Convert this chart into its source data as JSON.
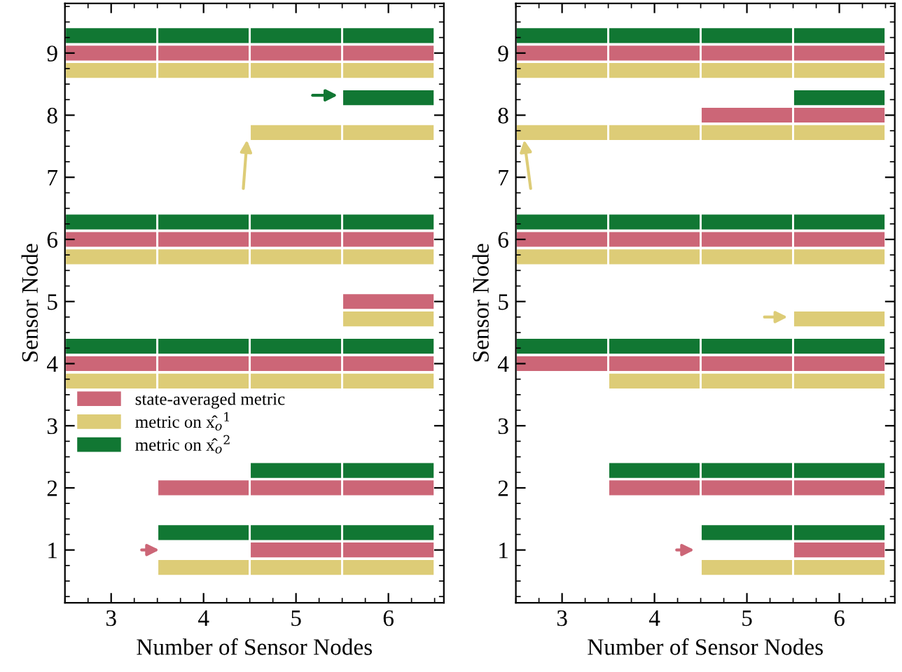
{
  "chart_data": [
    {
      "type": "bar",
      "orientation": "horizontal",
      "xlabel": "Number of Sensor Nodes",
      "ylabel": "Sensor Node",
      "xlim": [
        2.5,
        6.6
      ],
      "xticks": [
        3,
        4,
        5,
        6
      ],
      "ylim": [
        0.15,
        9.8
      ],
      "yticks": [
        1,
        2,
        3,
        4,
        5,
        6,
        7,
        8,
        9
      ],
      "legend": "center left",
      "grid": false,
      "series": [
        {
          "name": "state-averaged metric",
          "color": "#cc6677",
          "x": [
            4,
            6,
            9
          ],
          "base": [
            2.5,
            2.5,
            2.5
          ],
          "values": [
            1,
            1,
            1
          ]
        },
        {
          "name": "metric on x̂$_{o}$$^{1}$",
          "color": "#ddcc77",
          "x": [
            4,
            6,
            9
          ],
          "base": [
            2.5,
            2.5,
            2.5
          ],
          "values": [
            1,
            1,
            1
          ]
        },
        {
          "name": "metric on x̂$_{o}$$^{2}$",
          "color": "#117733",
          "x": [
            4,
            6,
            9
          ],
          "base": [
            2.5,
            2.5,
            2.5
          ],
          "values": [
            1,
            1,
            1
          ]
        },
        {
          "color": "#cc6677",
          "x": [
            2,
            4,
            6,
            9
          ],
          "base": [
            3.5,
            3.5,
            3.5,
            3.5
          ],
          "values": [
            1,
            1,
            1,
            1
          ]
        },
        {
          "color": "#ddcc77",
          "x": [
            1,
            4,
            6,
            9
          ],
          "base": [
            3.5,
            3.5,
            3.5,
            3.5
          ],
          "values": [
            1,
            1,
            1,
            1
          ]
        },
        {
          "color": "#117733",
          "x": [
            1,
            4,
            6,
            9
          ],
          "base": [
            3.5,
            3.5,
            3.5,
            3.5
          ],
          "values": [
            1,
            1,
            1,
            1
          ]
        },
        {
          "color": "#cc6677",
          "x": [
            1,
            2,
            4,
            6,
            9
          ],
          "base": [
            4.5,
            4.5,
            4.5,
            4.5,
            4.5
          ],
          "values": [
            1,
            1,
            1,
            1,
            1
          ]
        },
        {
          "color": "#ddcc77",
          "x": [
            1,
            4,
            6,
            8,
            9
          ],
          "base": [
            4.5,
            4.5,
            4.5,
            4.5,
            4.5
          ],
          "values": [
            1,
            1,
            1,
            1,
            1
          ]
        },
        {
          "color": "#117733",
          "x": [
            1,
            2,
            4,
            6,
            9
          ],
          "base": [
            4.5,
            4.5,
            4.5,
            4.5,
            4.5
          ],
          "values": [
            1,
            1,
            1,
            1,
            1
          ]
        },
        {
          "color": "#cc6677",
          "x": [
            1,
            2,
            4,
            5,
            6,
            9
          ],
          "base": [
            5.5,
            5.5,
            5.5,
            5.5,
            5.5,
            5.5
          ],
          "values": [
            1,
            1,
            1,
            1,
            1,
            1
          ]
        },
        {
          "color": "#ddcc77",
          "x": [
            1,
            4,
            5,
            6,
            8,
            9
          ],
          "base": [
            5.5,
            5.5,
            5.5,
            5.5,
            5.5,
            5.5
          ],
          "values": [
            1,
            1,
            1,
            1,
            1,
            1
          ]
        },
        {
          "color": "#117733",
          "x": [
            1,
            2,
            4,
            6,
            8,
            9
          ],
          "base": [
            5.5,
            5.5,
            5.5,
            5.5,
            5.5,
            5.5
          ],
          "values": [
            1,
            1,
            1,
            1,
            1,
            1
          ]
        }
      ]
    },
    {
      "type": "bar",
      "orientation": "horizontal",
      "xlabel": "Number of Sensor Nodes",
      "ylabel": "Sensor Node",
      "xlim": [
        2.5,
        6.6
      ],
      "xticks": [
        3,
        4,
        5,
        6
      ],
      "ylim": [
        0.15,
        9.8
      ],
      "yticks": [
        1,
        2,
        3,
        4,
        5,
        6,
        7,
        8,
        9
      ],
      "grid": false,
      "series": [
        {
          "color": "#cc6677",
          "x": [
            4,
            6,
            9
          ],
          "base": [
            2.5,
            2.5,
            2.5
          ],
          "values": [
            1,
            1,
            1
          ]
        },
        {
          "color": "#ddcc77",
          "x": [
            6,
            8,
            9
          ],
          "base": [
            2.5,
            2.5,
            2.5
          ],
          "values": [
            1,
            1,
            1
          ]
        },
        {
          "color": "#117733",
          "x": [
            4,
            6,
            9
          ],
          "base": [
            2.5,
            2.5,
            2.5
          ],
          "values": [
            1,
            1,
            1
          ]
        },
        {
          "color": "#cc6677",
          "x": [
            2,
            4,
            6,
            9
          ],
          "base": [
            3.5,
            3.5,
            3.5,
            3.5
          ],
          "values": [
            1,
            1,
            1,
            1
          ]
        },
        {
          "color": "#ddcc77",
          "x": [
            4,
            6,
            8,
            9
          ],
          "base": [
            3.5,
            3.5,
            3.5,
            3.5
          ],
          "values": [
            1,
            1,
            1,
            1
          ]
        },
        {
          "color": "#117733",
          "x": [
            2,
            4,
            6,
            9
          ],
          "base": [
            3.5,
            3.5,
            3.5,
            3.5
          ],
          "values": [
            1,
            1,
            1,
            1
          ]
        },
        {
          "color": "#cc6677",
          "x": [
            2,
            4,
            6,
            8,
            9
          ],
          "base": [
            4.5,
            4.5,
            4.5,
            4.5,
            4.5
          ],
          "values": [
            1,
            1,
            1,
            1,
            1
          ]
        },
        {
          "color": "#ddcc77",
          "x": [
            1,
            4,
            6,
            8,
            9
          ],
          "base": [
            4.5,
            4.5,
            4.5,
            4.5,
            4.5
          ],
          "values": [
            1,
            1,
            1,
            1,
            1
          ]
        },
        {
          "color": "#117733",
          "x": [
            1,
            2,
            4,
            6,
            9
          ],
          "base": [
            4.5,
            4.5,
            4.5,
            4.5,
            4.5
          ],
          "values": [
            1,
            1,
            1,
            1,
            1
          ]
        },
        {
          "color": "#cc6677",
          "x": [
            1,
            2,
            4,
            6,
            8,
            9
          ],
          "base": [
            5.5,
            5.5,
            5.5,
            5.5,
            5.5,
            5.5
          ],
          "values": [
            1,
            1,
            1,
            1,
            1,
            1
          ]
        },
        {
          "color": "#ddcc77",
          "x": [
            1,
            4,
            5,
            6,
            8,
            9
          ],
          "base": [
            5.5,
            5.5,
            5.5,
            5.5,
            5.5,
            5.5
          ],
          "values": [
            1,
            1,
            1,
            1,
            1,
            1
          ]
        },
        {
          "color": "#117733",
          "x": [
            1,
            2,
            4,
            6,
            8,
            9
          ],
          "base": [
            5.5,
            5.5,
            5.5,
            5.5,
            5.5,
            5.5
          ],
          "values": [
            1,
            1,
            1,
            1,
            1,
            1
          ]
        }
      ]
    }
  ]
}
